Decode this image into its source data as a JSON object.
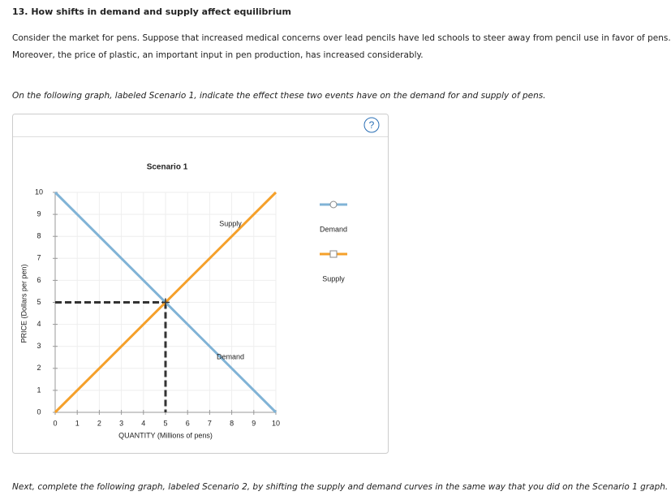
{
  "header": {
    "title": "13. How shifts in demand and supply affect equilibrium"
  },
  "intro": [
    "Consider the market for pens. Suppose that increased medical concerns over lead pencils have led schools to steer away from pencil use in favor of pens.",
    "Moreover, the price of plastic, an important input in pen production, has increased considerably."
  ],
  "instruction": "On the following graph, labeled Scenario 1, indicate the effect these two events have on the demand for and supply of pens.",
  "help_icon": "?",
  "chart_data": {
    "type": "line",
    "title": "Scenario 1",
    "xlabel": "QUANTITY (Millions of pens)",
    "ylabel": "PRICE (Dollars per pen)",
    "xlim": [
      0,
      10
    ],
    "ylim": [
      0,
      10
    ],
    "xticks": [
      0,
      1,
      2,
      3,
      4,
      5,
      6,
      7,
      8,
      9,
      10
    ],
    "yticks": [
      0,
      1,
      2,
      3,
      4,
      5,
      6,
      7,
      8,
      9,
      10
    ],
    "grid": true,
    "series": [
      {
        "name": "Demand",
        "color": "#80b3d6",
        "x": [
          0,
          10
        ],
        "values": [
          10,
          0
        ],
        "marker": "circle"
      },
      {
        "name": "Supply",
        "color": "#f5a02a",
        "x": [
          0,
          10
        ],
        "values": [
          0,
          10
        ],
        "marker": "square"
      }
    ],
    "equilibrium": {
      "x": 5,
      "y": 5
    }
  },
  "footer": "Next, complete the following graph, labeled Scenario 2, by shifting the supply and demand curves in the same way that you did on the Scenario 1 graph."
}
